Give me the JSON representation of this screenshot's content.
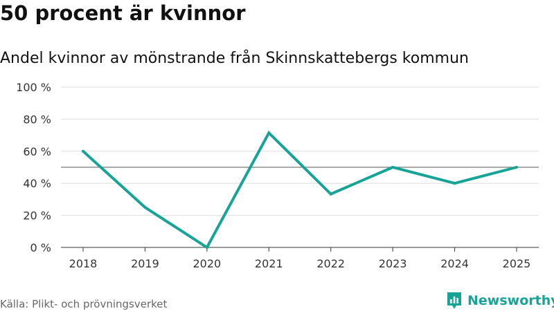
{
  "header": {
    "title": "50 procent är kvinnor",
    "subtitle": "Andel kvinnor av mönstrande från Skinnskattebergs kommun"
  },
  "footer": {
    "source": "Källa: Plikt- och prövningsverket",
    "brand": "Newsworthy"
  },
  "colors": {
    "line": "#17a497",
    "reference": "#777777",
    "grid": "#dddddd",
    "brand": "#17a497"
  },
  "icons": {
    "logo": "newsworthy-logo-icon"
  },
  "chart_data": {
    "type": "line",
    "categories": [
      "2018",
      "2019",
      "2020",
      "2021",
      "2022",
      "2023",
      "2024",
      "2025"
    ],
    "values": [
      60,
      25,
      0,
      71.4,
      33.3,
      50,
      40,
      50
    ],
    "ylim": [
      0,
      100
    ],
    "yticks": [
      0,
      20,
      40,
      60,
      80,
      100
    ],
    "ytick_labels": [
      "0 %",
      "20 %",
      "40 %",
      "60 %",
      "80 %",
      "100 %"
    ],
    "reference_line": 50,
    "grid": true,
    "legend": "none"
  }
}
